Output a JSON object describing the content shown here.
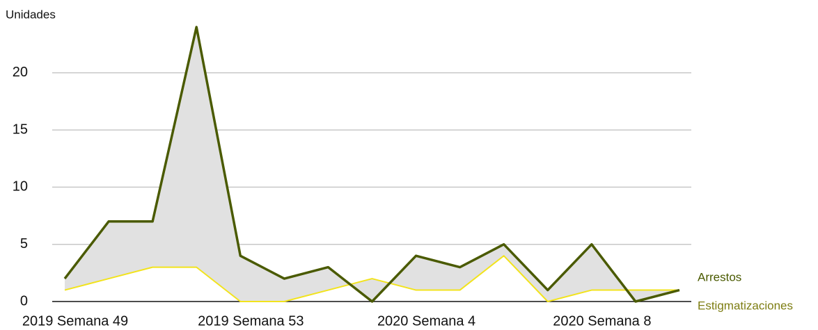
{
  "chart_data": {
    "type": "line",
    "y_axis_label": "Unidades",
    "categories": [
      "2019 Semana 49",
      null,
      null,
      null,
      "2019 Semana 53",
      null,
      null,
      null,
      "2020 Semana 4",
      null,
      null,
      null,
      "2020 Semana 8",
      null,
      null
    ],
    "series": [
      {
        "name": "Arrestos",
        "color": "#4a5a00",
        "label_color": "#4a5a00",
        "values": [
          2,
          7,
          7,
          24,
          4,
          2,
          3,
          0,
          4,
          3,
          5,
          1,
          5,
          0,
          1
        ]
      },
      {
        "name": "Estigmatizaciones",
        "color": "#f2e31c",
        "label_color": "#7d7d12",
        "values": [
          1,
          2,
          3,
          3,
          0,
          0,
          1,
          2,
          1,
          1,
          4,
          0,
          1,
          1,
          1
        ]
      }
    ],
    "band_color": "#e1e1e1",
    "ylim": [
      0,
      24.3
    ],
    "yticks": [
      0,
      5,
      10,
      15,
      20
    ],
    "grid": true
  }
}
